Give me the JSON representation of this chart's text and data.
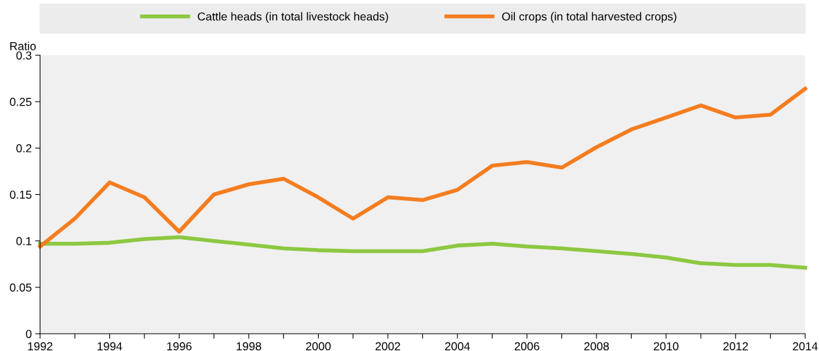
{
  "chart_data": {
    "type": "line",
    "ylabel": "Ratio",
    "x": [
      1992,
      1993,
      1994,
      1995,
      1996,
      1997,
      1998,
      1999,
      2000,
      2001,
      2002,
      2003,
      2004,
      2005,
      2006,
      2007,
      2008,
      2009,
      2010,
      2011,
      2012,
      2013,
      2014
    ],
    "series": [
      {
        "name": "Cattle heads (in total livestock heads)",
        "color": "#8cc841",
        "values": [
          0.097,
          0.097,
          0.098,
          0.102,
          0.104,
          0.1,
          0.096,
          0.092,
          0.09,
          0.089,
          0.089,
          0.089,
          0.095,
          0.097,
          0.094,
          0.092,
          0.089,
          0.086,
          0.082,
          0.076,
          0.074,
          0.074,
          0.071
        ]
      },
      {
        "name": "Oil crops (in total harvested crops)",
        "color": "#f47d20",
        "values": [
          0.094,
          0.124,
          0.163,
          0.147,
          0.11,
          0.15,
          0.161,
          0.167,
          0.147,
          0.124,
          0.147,
          0.144,
          0.155,
          0.181,
          0.185,
          0.179,
          0.201,
          0.22,
          0.233,
          0.246,
          0.233,
          0.236,
          0.264
        ]
      }
    ],
    "xlim": [
      1992,
      2014
    ],
    "xticks": [
      1992,
      {
        "value": 1993,
        "label": null
      },
      1994,
      {
        "value": 1995,
        "label": null
      },
      1996,
      {
        "value": 1997,
        "label": null
      },
      1998,
      {
        "value": 1999,
        "label": null
      },
      2000,
      {
        "value": 2001,
        "label": null
      },
      2002,
      {
        "value": 2003,
        "label": null
      },
      2004,
      {
        "value": 2005,
        "label": null
      },
      2006,
      {
        "value": 2007,
        "label": null
      },
      2008,
      {
        "value": 2009,
        "label": null
      },
      2010,
      {
        "value": 2011,
        "label": null
      },
      2012,
      {
        "value": 2013,
        "label": null
      },
      2014
    ],
    "ylim": [
      0,
      0.3
    ],
    "yticks": [
      0,
      0.05,
      0.1,
      0.15,
      0.2,
      0.25,
      0.3
    ],
    "grid": false,
    "legend": "top",
    "marker": "none",
    "line_style": "solid"
  }
}
